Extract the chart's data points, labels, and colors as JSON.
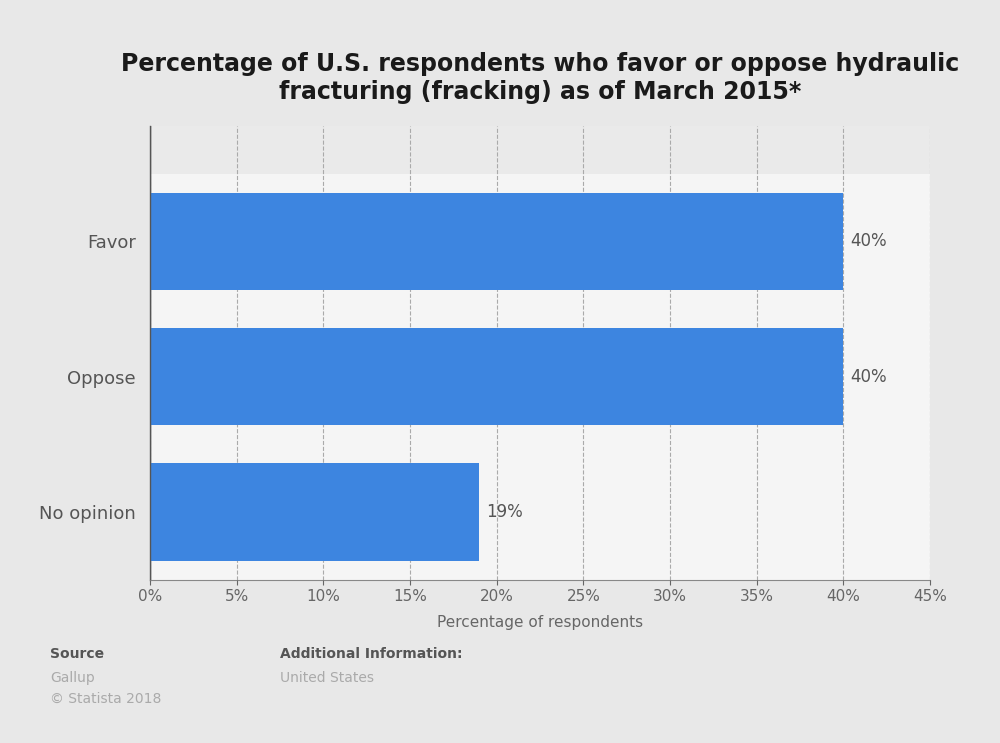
{
  "title": "Percentage of U.S. respondents who favor or oppose hydraulic\nfracturing (fracking) as of March 2015*",
  "categories": [
    "No opinion",
    "Oppose",
    "Favor"
  ],
  "values": [
    19,
    40,
    40
  ],
  "bar_color": "#3d85e0",
  "background_color": "#e8e8e8",
  "plot_bg_color": "#eaeaea",
  "bar_bg_color": "#f5f5f5",
  "xlabel": "Percentage of respondents",
  "xlim": [
    0,
    45
  ],
  "xticks": [
    0,
    5,
    10,
    15,
    20,
    25,
    30,
    35,
    40,
    45
  ],
  "bar_labels": [
    "19%",
    "40%",
    "40%"
  ],
  "title_fontsize": 17,
  "label_fontsize": 12,
  "tick_fontsize": 11,
  "source_text": "Source",
  "source_sub1": "Gallup",
  "source_sub2": "© Statista 2018",
  "add_info_title": "Additional Information:",
  "add_info_sub": "United States"
}
